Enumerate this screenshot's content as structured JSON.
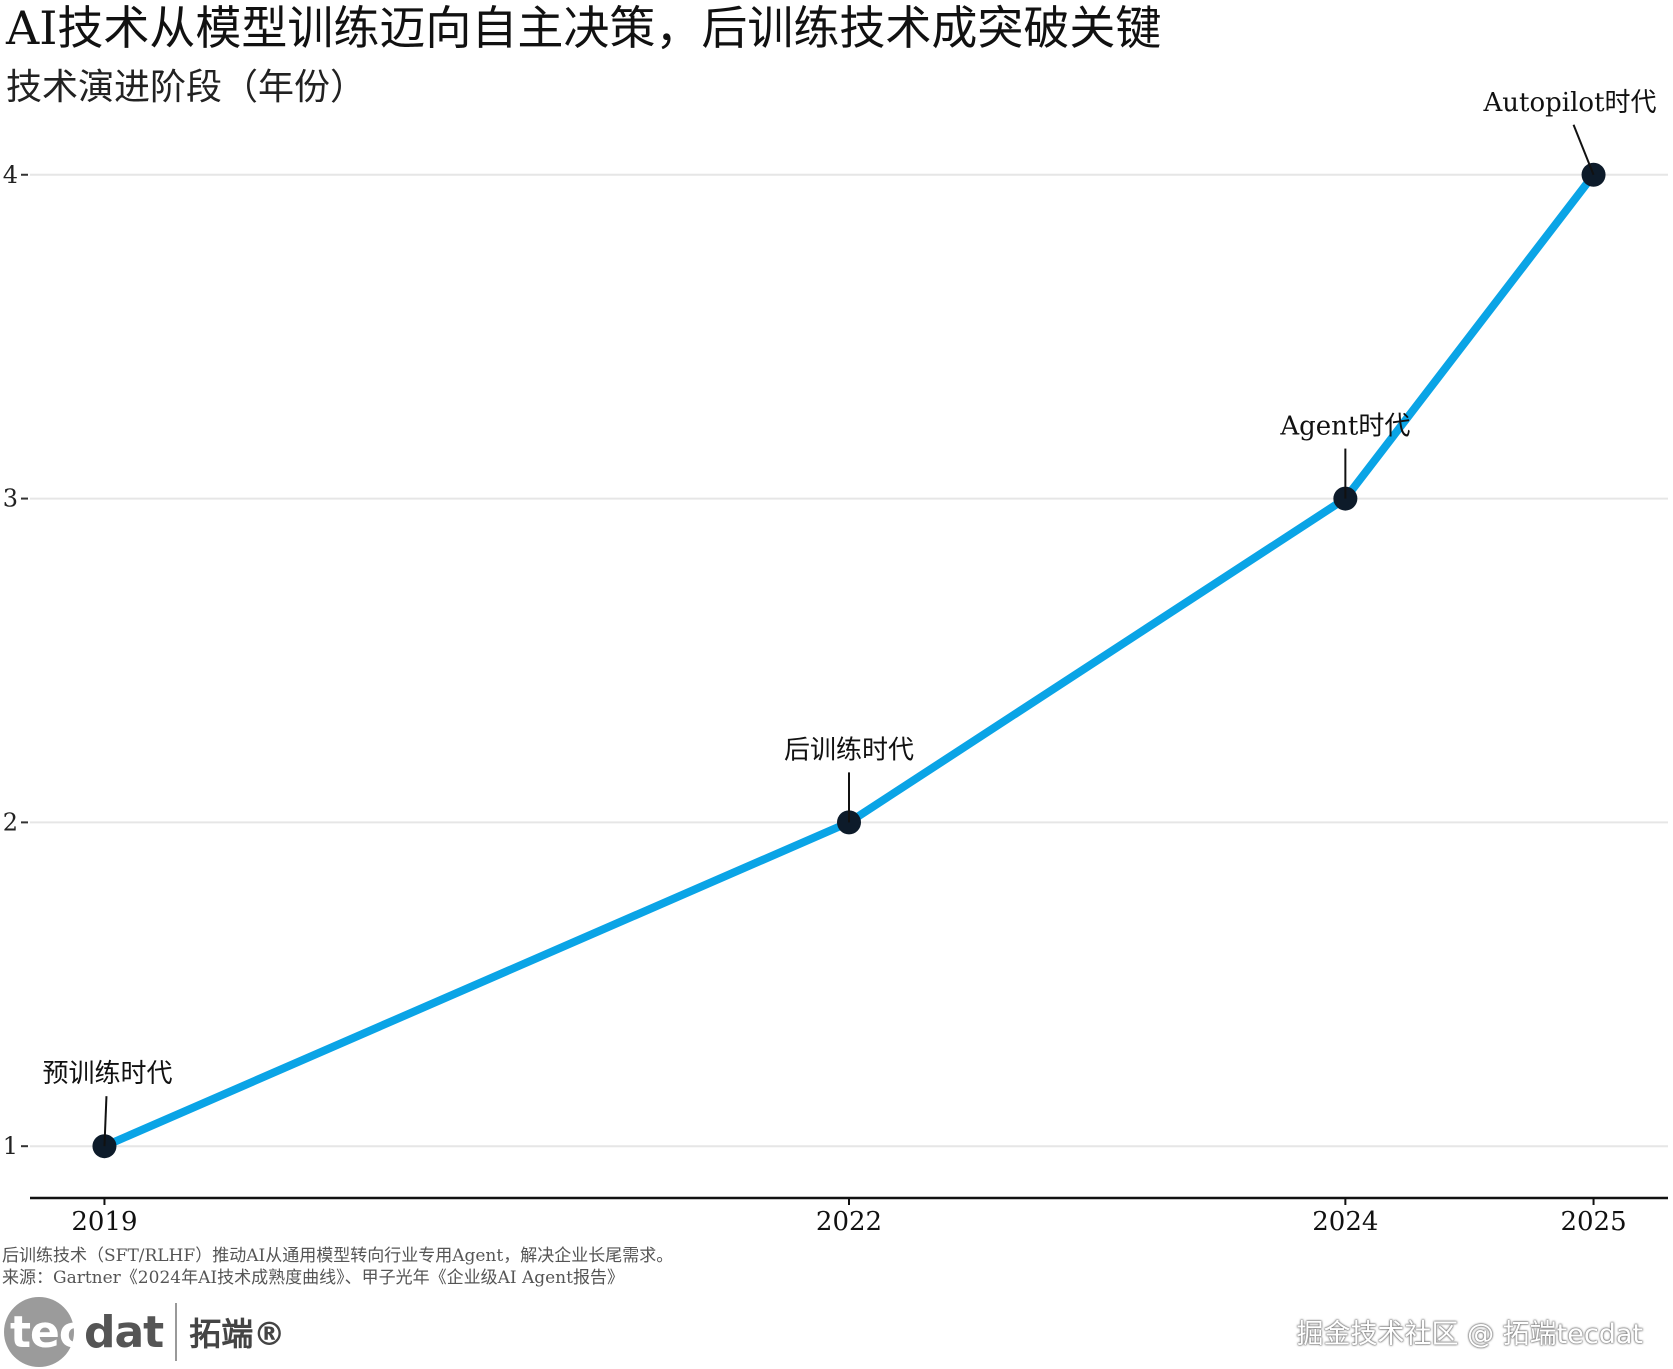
{
  "title": "AI技术从模型训练迈向自主决策，后训练技术成突破关键",
  "subtitle": "技术演进阶段（年份）",
  "chart_data": {
    "type": "line",
    "x": [
      2019,
      2022,
      2024,
      2025
    ],
    "y": [
      1,
      2,
      3,
      4
    ],
    "point_labels": [
      "预训练时代",
      "后训练时代",
      "Agent时代",
      "Autopilot时代"
    ],
    "x_ticks": [
      "2019",
      "2022",
      "2024",
      "2025"
    ],
    "y_ticks": [
      "1",
      "2",
      "3",
      "4"
    ],
    "xlim": [
      2018.7,
      2025.3
    ],
    "ylim": [
      0.84,
      4.2
    ],
    "grid": "horizontal",
    "line_color": "#0aa4e6",
    "point_color": "#0d1b2a"
  },
  "caption": {
    "note": "后训练技术（SFT/RLHF）推动AI从通用模型转向行业专用Agent，解决企业长尾需求。",
    "source": "来源：Gartner《2024年AI技术成熟度曲线》、甲子光年《企业级AI Agent报告》"
  },
  "logo": {
    "tec": "tec",
    "dat": "dat",
    "cn": "拓端®"
  },
  "watermark": "掘金技术社区 @ 拓端tecdat"
}
